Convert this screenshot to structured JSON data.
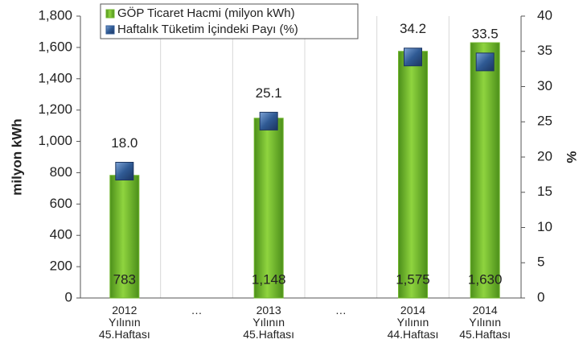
{
  "chart_data": {
    "type": "bar",
    "categories": [
      "2012\nYılının\n45.Haftası",
      "…",
      "2013\nYılının\n45.Haftası",
      "…",
      "2014\nYılının\n44.Haftası",
      "2014\nYılının\n45.Haftası"
    ],
    "series": [
      {
        "name": "GÖP Ticaret Hacmi (milyon kWh)",
        "type": "bar",
        "color": "#6fb62c",
        "values": [
          783,
          null,
          1148,
          null,
          1575,
          1630
        ],
        "value_labels": [
          "783",
          null,
          "1,148",
          null,
          "1,575",
          "1,630"
        ]
      },
      {
        "name": "Haftalık Tüketim İçindeki Payı (%)",
        "type": "scatter",
        "axis": "y2",
        "color": "#2f5a94",
        "values": [
          18.0,
          null,
          25.1,
          null,
          34.2,
          33.5
        ],
        "value_labels": [
          "18.0",
          null,
          "25.1",
          null,
          "34.2",
          "33.5"
        ]
      }
    ],
    "y_label": "milyon kWh",
    "y2_label": "%",
    "ylim": [
      0,
      1800
    ],
    "yticks": [
      0,
      200,
      400,
      600,
      800,
      {
        "value": 1000,
        "label": "1,000"
      },
      {
        "value": 1200,
        "label": "1,200"
      },
      {
        "value": 1400,
        "label": "1,400"
      },
      {
        "value": 1600,
        "label": "1,600"
      },
      {
        "value": 1800,
        "label": "1,800"
      }
    ],
    "y2lim": [
      0,
      40
    ],
    "y2ticks": [
      0,
      5,
      10,
      15,
      20,
      25,
      30,
      35,
      40
    ],
    "legend": "top"
  }
}
